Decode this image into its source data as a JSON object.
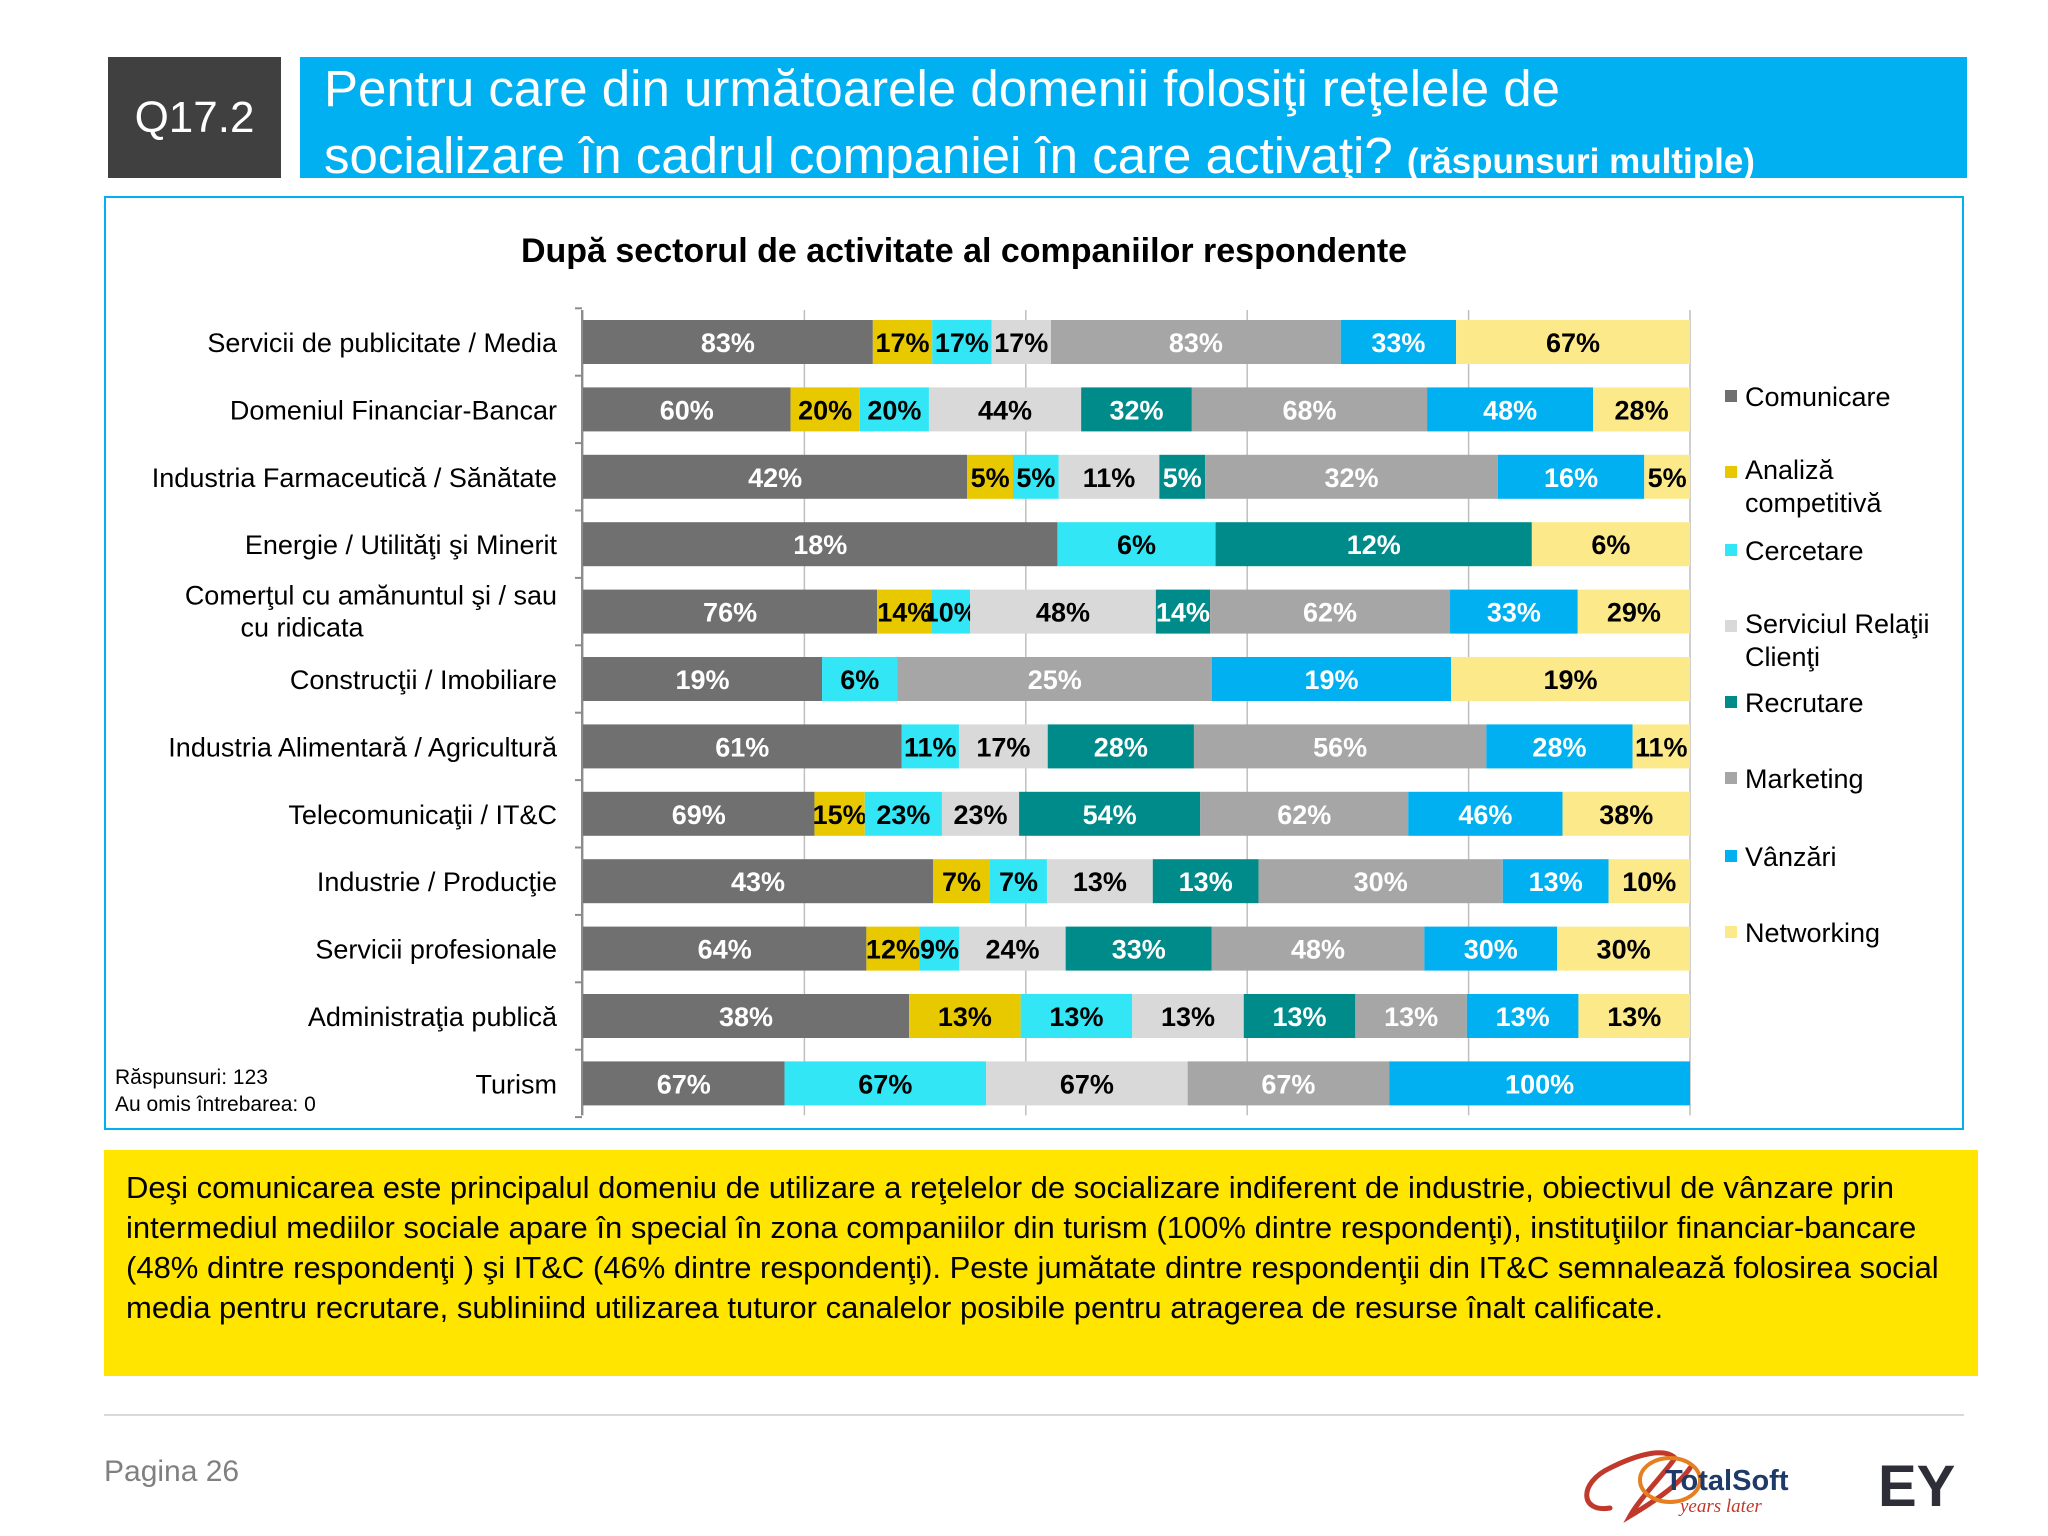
{
  "header": {
    "question_id": "Q17.2",
    "title_line1": "Pentru care din următoarele domenii folosiţi reţelele de",
    "title_line2": "socializare în cadrul companiei în care activaţi?",
    "title_suffix": "(răspunsuri multiple)"
  },
  "chart_data": {
    "type": "bar",
    "orientation": "horizontal",
    "stacked": true,
    "normalized": true,
    "title": "După sectorul de activitate al companiilor respondente",
    "categories": [
      "Servicii de publicitate / Media",
      "Domeniul Financiar-Bancar",
      "Industria Farmaceutică / Sănătate",
      "Energie / Utilităţi şi Minerit",
      "Comerţul cu amănuntul şi / sau cu ridicata",
      "Construcţii / Imobiliare",
      "Industria Alimentară / Agricultură",
      "Telecomunicaţii / IT&C",
      "Industrie / Producţie",
      "Servicii profesionale",
      "Administraţia publică",
      "Turism"
    ],
    "series": [
      {
        "name": "Comunicare",
        "color": "#707070",
        "values": [
          83,
          60,
          42,
          18,
          76,
          19,
          61,
          69,
          43,
          64,
          38,
          67
        ]
      },
      {
        "name": "Analiză competitivă",
        "color": "#e8c900",
        "values": [
          17,
          20,
          5,
          0,
          14,
          0,
          0,
          15,
          7,
          12,
          13,
          0
        ]
      },
      {
        "name": "Cercetare",
        "color": "#33e6f5",
        "values": [
          17,
          20,
          5,
          6,
          10,
          6,
          11,
          23,
          7,
          9,
          13,
          67
        ]
      },
      {
        "name": "Serviciul Relaţii Clienţi",
        "color": "#d9d9d9",
        "values": [
          17,
          44,
          11,
          0,
          48,
          0,
          17,
          23,
          13,
          24,
          13,
          67
        ]
      },
      {
        "name": "Recrutare",
        "color": "#008b8b",
        "values": [
          0,
          32,
          5,
          12,
          14,
          0,
          28,
          54,
          13,
          33,
          13,
          0
        ]
      },
      {
        "name": "Marketing",
        "color": "#a6a6a6",
        "values": [
          83,
          68,
          32,
          0,
          62,
          25,
          56,
          62,
          30,
          48,
          13,
          67
        ]
      },
      {
        "name": "Vânzări",
        "color": "#00b0f0",
        "values": [
          33,
          48,
          16,
          0,
          33,
          19,
          28,
          46,
          13,
          30,
          13,
          100
        ]
      },
      {
        "name": "Networking",
        "color": "#fce98a",
        "values": [
          67,
          28,
          5,
          6,
          29,
          19,
          11,
          38,
          10,
          30,
          13,
          0
        ]
      }
    ],
    "legend_position": "right",
    "grid": true
  },
  "stats": {
    "responses": "Răspunsuri: 123",
    "skipped": "Au omis întrebarea: 0"
  },
  "callout": "Deşi comunicarea este principalul domeniu de utilizare a reţelelor de socializare indiferent de industrie, obiectivul de vânzare prin intermediul mediilor sociale apare în special în zona companiilor din turism (100% dintre respondenţi), instituţiilor financiar-bancare (48% dintre respondenţi ) şi IT&C (46% dintre respondenţi). Peste jumătate dintre respondenţii din IT&C semnalează folosirea social media pentru recrutare, subliniind utilizarea tuturor canalelor posibile pentru atragerea de resurse înalt calificate.",
  "footer": {
    "page": "Pagina 26",
    "logo_totalsoft": "TotalSoft",
    "logo_tagline": "years later",
    "logo_ey": "EY"
  }
}
